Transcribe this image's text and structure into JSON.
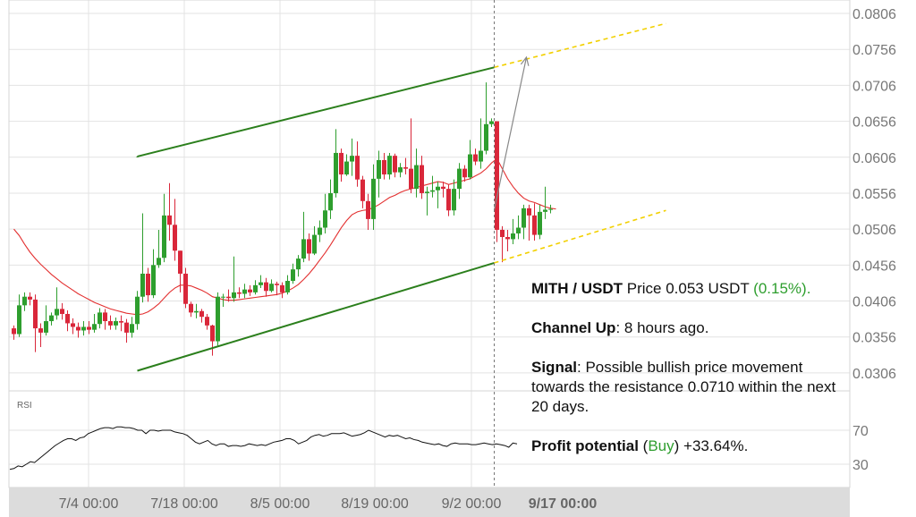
{
  "info": {
    "pair": "MITH / USDT",
    "price_label": "Price",
    "price": "0.053 USDT",
    "change": "(0.15%).",
    "pattern": "Channel Up",
    "pattern_time": ": 8 hours ago.",
    "signal_label": "Signal",
    "signal_text": ": Possible bullish price movement towards the resistance 0.0710 within the next 20 days.",
    "profit_label": "Profit potential",
    "profit_open": " (",
    "profit_action": "Buy",
    "profit_value": ") +33.64%."
  },
  "colors": {
    "up": "#2e9e2e",
    "down": "#d9273a",
    "channel": "#2b7f1c",
    "projection": "#f2d000",
    "ma": "#e33030",
    "rsi": "#111111"
  },
  "chart_data": [
    {
      "type": "candlestick",
      "title": "",
      "xlabel": "",
      "ylabel": "",
      "ylim": [
        0.0281,
        0.0806
      ],
      "y_ticks": [
        "0.0806",
        "0.0756",
        "0.0706",
        "0.0656",
        "0.0606",
        "0.0556",
        "0.0506",
        "0.0456",
        "0.0406",
        "0.0356",
        "0.0306"
      ],
      "x_ticks": [
        "7/4 00:00",
        "7/18 00:00",
        "8/5 00:00",
        "8/19 00:00",
        "9/2 00:00",
        "9/17 00:00"
      ],
      "grid": true,
      "candles": [
        {
          "o": 0.0368,
          "c": 0.036,
          "h": 0.0372,
          "l": 0.0352
        },
        {
          "o": 0.036,
          "c": 0.04,
          "h": 0.0415,
          "l": 0.0356
        },
        {
          "o": 0.04,
          "c": 0.0412,
          "h": 0.0418,
          "l": 0.0392
        },
        {
          "o": 0.0412,
          "c": 0.0408,
          "h": 0.0418,
          "l": 0.04
        },
        {
          "o": 0.0408,
          "c": 0.0368,
          "h": 0.0415,
          "l": 0.0335
        },
        {
          "o": 0.0368,
          "c": 0.0362,
          "h": 0.0375,
          "l": 0.0342
        },
        {
          "o": 0.0362,
          "c": 0.0378,
          "h": 0.04,
          "l": 0.0358
        },
        {
          "o": 0.0378,
          "c": 0.0386,
          "h": 0.039,
          "l": 0.0372
        },
        {
          "o": 0.0386,
          "c": 0.0395,
          "h": 0.0425,
          "l": 0.038
        },
        {
          "o": 0.0395,
          "c": 0.0388,
          "h": 0.0403,
          "l": 0.038
        },
        {
          "o": 0.0388,
          "c": 0.0375,
          "h": 0.0393,
          "l": 0.0364
        },
        {
          "o": 0.0375,
          "c": 0.037,
          "h": 0.0382,
          "l": 0.036
        },
        {
          "o": 0.037,
          "c": 0.0365,
          "h": 0.0376,
          "l": 0.0355
        },
        {
          "o": 0.0365,
          "c": 0.037,
          "h": 0.0378,
          "l": 0.0358
        },
        {
          "o": 0.037,
          "c": 0.0366,
          "h": 0.0378,
          "l": 0.036
        },
        {
          "o": 0.0366,
          "c": 0.0374,
          "h": 0.0388,
          "l": 0.0362
        },
        {
          "o": 0.0374,
          "c": 0.039,
          "h": 0.0396,
          "l": 0.0368
        },
        {
          "o": 0.039,
          "c": 0.0378,
          "h": 0.0395,
          "l": 0.0366
        },
        {
          "o": 0.0378,
          "c": 0.0372,
          "h": 0.0386,
          "l": 0.0366
        },
        {
          "o": 0.0372,
          "c": 0.0378,
          "h": 0.0383,
          "l": 0.0366
        },
        {
          "o": 0.0378,
          "c": 0.0376,
          "h": 0.0386,
          "l": 0.0364
        },
        {
          "o": 0.0376,
          "c": 0.0362,
          "h": 0.0381,
          "l": 0.0348
        },
        {
          "o": 0.0362,
          "c": 0.0374,
          "h": 0.0384,
          "l": 0.0355
        },
        {
          "o": 0.0374,
          "c": 0.0412,
          "h": 0.042,
          "l": 0.0366
        },
        {
          "o": 0.0412,
          "c": 0.0444,
          "h": 0.0528,
          "l": 0.0404
        },
        {
          "o": 0.0444,
          "c": 0.0414,
          "h": 0.0452,
          "l": 0.0405
        },
        {
          "o": 0.0414,
          "c": 0.0456,
          "h": 0.0478,
          "l": 0.041
        },
        {
          "o": 0.0456,
          "c": 0.0466,
          "h": 0.0505,
          "l": 0.0452
        },
        {
          "o": 0.0466,
          "c": 0.0525,
          "h": 0.0555,
          "l": 0.046
        },
        {
          "o": 0.0525,
          "c": 0.0512,
          "h": 0.057,
          "l": 0.049
        },
        {
          "o": 0.0512,
          "c": 0.0476,
          "h": 0.0548,
          "l": 0.0462
        },
        {
          "o": 0.0476,
          "c": 0.0444,
          "h": 0.0476,
          "l": 0.0418
        },
        {
          "o": 0.0444,
          "c": 0.0402,
          "h": 0.0452,
          "l": 0.0396
        },
        {
          "o": 0.0402,
          "c": 0.039,
          "h": 0.0405,
          "l": 0.0384
        },
        {
          "o": 0.039,
          "c": 0.0392,
          "h": 0.0402,
          "l": 0.0382
        },
        {
          "o": 0.0392,
          "c": 0.0384,
          "h": 0.0395,
          "l": 0.0376
        },
        {
          "o": 0.0384,
          "c": 0.0372,
          "h": 0.0388,
          "l": 0.0366
        },
        {
          "o": 0.0372,
          "c": 0.035,
          "h": 0.0373,
          "l": 0.033
        },
        {
          "o": 0.035,
          "c": 0.0412,
          "h": 0.0418,
          "l": 0.0344
        },
        {
          "o": 0.0412,
          "c": 0.0412,
          "h": 0.0416,
          "l": 0.0398
        },
        {
          "o": 0.0412,
          "c": 0.041,
          "h": 0.0422,
          "l": 0.0405
        },
        {
          "o": 0.041,
          "c": 0.0418,
          "h": 0.0468,
          "l": 0.0405
        },
        {
          "o": 0.0418,
          "c": 0.0416,
          "h": 0.0425,
          "l": 0.041
        },
        {
          "o": 0.0416,
          "c": 0.0422,
          "h": 0.043,
          "l": 0.041
        },
        {
          "o": 0.0422,
          "c": 0.0418,
          "h": 0.0428,
          "l": 0.0413
        },
        {
          "o": 0.0418,
          "c": 0.0428,
          "h": 0.0435,
          "l": 0.0415
        },
        {
          "o": 0.0428,
          "c": 0.0432,
          "h": 0.0442,
          "l": 0.0424
        },
        {
          "o": 0.0432,
          "c": 0.042,
          "h": 0.0438,
          "l": 0.0412
        },
        {
          "o": 0.042,
          "c": 0.043,
          "h": 0.0436,
          "l": 0.0418
        },
        {
          "o": 0.043,
          "c": 0.0428,
          "h": 0.0433,
          "l": 0.0414
        },
        {
          "o": 0.0428,
          "c": 0.0418,
          "h": 0.0432,
          "l": 0.041
        },
        {
          "o": 0.0418,
          "c": 0.0434,
          "h": 0.0442,
          "l": 0.0415
        },
        {
          "o": 0.0434,
          "c": 0.045,
          "h": 0.0458,
          "l": 0.043
        },
        {
          "o": 0.045,
          "c": 0.0465,
          "h": 0.047,
          "l": 0.044
        },
        {
          "o": 0.0465,
          "c": 0.0492,
          "h": 0.053,
          "l": 0.046
        },
        {
          "o": 0.0492,
          "c": 0.0472,
          "h": 0.05,
          "l": 0.0462
        },
        {
          "o": 0.0472,
          "c": 0.0498,
          "h": 0.051,
          "l": 0.047
        },
        {
          "o": 0.0498,
          "c": 0.0508,
          "h": 0.0518,
          "l": 0.0488
        },
        {
          "o": 0.0508,
          "c": 0.0532,
          "h": 0.0555,
          "l": 0.05
        },
        {
          "o": 0.0532,
          "c": 0.0556,
          "h": 0.0575,
          "l": 0.052
        },
        {
          "o": 0.0556,
          "c": 0.0612,
          "h": 0.0645,
          "l": 0.055
        },
        {
          "o": 0.0612,
          "c": 0.0582,
          "h": 0.0618,
          "l": 0.0572
        },
        {
          "o": 0.0582,
          "c": 0.06,
          "h": 0.061,
          "l": 0.058
        },
        {
          "o": 0.06,
          "c": 0.0608,
          "h": 0.0632,
          "l": 0.058
        },
        {
          "o": 0.0608,
          "c": 0.0575,
          "h": 0.0628,
          "l": 0.0565
        },
        {
          "o": 0.0575,
          "c": 0.0545,
          "h": 0.058,
          "l": 0.0535
        },
        {
          "o": 0.0545,
          "c": 0.052,
          "h": 0.0555,
          "l": 0.0505
        },
        {
          "o": 0.052,
          "c": 0.0576,
          "h": 0.0596,
          "l": 0.0505
        },
        {
          "o": 0.0576,
          "c": 0.0602,
          "h": 0.0615,
          "l": 0.055
        },
        {
          "o": 0.0602,
          "c": 0.0582,
          "h": 0.0612,
          "l": 0.0575
        },
        {
          "o": 0.0582,
          "c": 0.0608,
          "h": 0.0612,
          "l": 0.0575
        },
        {
          "o": 0.0608,
          "c": 0.0585,
          "h": 0.0611,
          "l": 0.0578
        },
        {
          "o": 0.0585,
          "c": 0.0592,
          "h": 0.0598,
          "l": 0.0578
        },
        {
          "o": 0.0592,
          "c": 0.059,
          "h": 0.0605,
          "l": 0.0582
        },
        {
          "o": 0.059,
          "c": 0.0562,
          "h": 0.066,
          "l": 0.0556
        },
        {
          "o": 0.0562,
          "c": 0.0595,
          "h": 0.0618,
          "l": 0.055
        },
        {
          "o": 0.0595,
          "c": 0.0556,
          "h": 0.0608,
          "l": 0.0548
        },
        {
          "o": 0.0556,
          "c": 0.0558,
          "h": 0.0565,
          "l": 0.0525
        },
        {
          "o": 0.0558,
          "c": 0.056,
          "h": 0.058,
          "l": 0.055
        },
        {
          "o": 0.056,
          "c": 0.0565,
          "h": 0.0572,
          "l": 0.0535
        },
        {
          "o": 0.0565,
          "c": 0.0562,
          "h": 0.0572,
          "l": 0.055
        },
        {
          "o": 0.0562,
          "c": 0.0532,
          "h": 0.0568,
          "l": 0.0524
        },
        {
          "o": 0.0532,
          "c": 0.0562,
          "h": 0.0575,
          "l": 0.0525
        },
        {
          "o": 0.0562,
          "c": 0.059,
          "h": 0.0598,
          "l": 0.0548
        },
        {
          "o": 0.059,
          "c": 0.0578,
          "h": 0.0595,
          "l": 0.0572
        },
        {
          "o": 0.0578,
          "c": 0.061,
          "h": 0.063,
          "l": 0.0575
        },
        {
          "o": 0.061,
          "c": 0.06,
          "h": 0.0618,
          "l": 0.0595
        },
        {
          "o": 0.06,
          "c": 0.0615,
          "h": 0.066,
          "l": 0.059
        },
        {
          "o": 0.0615,
          "c": 0.0652,
          "h": 0.071,
          "l": 0.061
        },
        {
          "o": 0.0652,
          "c": 0.0656,
          "h": 0.066,
          "l": 0.0648
        },
        {
          "o": 0.0656,
          "c": 0.0505,
          "h": 0.0656,
          "l": 0.0488
        },
        {
          "o": 0.0505,
          "c": 0.0495,
          "h": 0.051,
          "l": 0.046
        },
        {
          "o": 0.0495,
          "c": 0.0492,
          "h": 0.0505,
          "l": 0.0475
        },
        {
          "o": 0.0492,
          "c": 0.05,
          "h": 0.052,
          "l": 0.0485
        },
        {
          "o": 0.05,
          "c": 0.0508,
          "h": 0.0525,
          "l": 0.0492
        },
        {
          "o": 0.0508,
          "c": 0.0535,
          "h": 0.054,
          "l": 0.0492
        },
        {
          "o": 0.0535,
          "c": 0.0525,
          "h": 0.054,
          "l": 0.049
        },
        {
          "o": 0.0525,
          "c": 0.0498,
          "h": 0.0542,
          "l": 0.049
        },
        {
          "o": 0.0498,
          "c": 0.053,
          "h": 0.054,
          "l": 0.0492
        },
        {
          "o": 0.053,
          "c": 0.0533,
          "h": 0.0565,
          "l": 0.052
        },
        {
          "o": 0.0533,
          "c": 0.0534,
          "h": 0.054,
          "l": 0.0528
        }
      ],
      "ma": [
        0.0506,
        0.0497,
        0.0485,
        0.0474,
        0.0465,
        0.0457,
        0.045,
        0.0443,
        0.0437,
        0.0431,
        0.0426,
        0.0421,
        0.0416,
        0.0412,
        0.0408,
        0.0404,
        0.0401,
        0.0398,
        0.0395,
        0.0393,
        0.0391,
        0.0389,
        0.0388,
        0.0387,
        0.0388,
        0.0391,
        0.0396,
        0.0402,
        0.041,
        0.0418,
        0.0424,
        0.0428,
        0.0428,
        0.0427,
        0.0424,
        0.0421,
        0.0417,
        0.0412,
        0.041,
        0.0408,
        0.0407,
        0.0407,
        0.0408,
        0.0409,
        0.041,
        0.0411,
        0.0412,
        0.0413,
        0.0414,
        0.0415,
        0.0417,
        0.042,
        0.0424,
        0.0429,
        0.0436,
        0.0444,
        0.0453,
        0.0463,
        0.0473,
        0.0484,
        0.0496,
        0.0508,
        0.0518,
        0.0526,
        0.053,
        0.0532,
        0.0533,
        0.0536,
        0.054,
        0.0545,
        0.055,
        0.0553,
        0.0557,
        0.056,
        0.0562,
        0.0564,
        0.0566,
        0.0568,
        0.057,
        0.0572,
        0.0571,
        0.0568,
        0.057,
        0.0572,
        0.0574,
        0.0576,
        0.058,
        0.0584,
        0.059,
        0.0598,
        0.0604,
        0.059,
        0.0576,
        0.0565,
        0.0556,
        0.0549,
        0.0545,
        0.0543,
        0.054,
        0.0537,
        0.0535,
        0.0534
      ],
      "channel": {
        "upper": [
          {
            "i": 23,
            "v": 0.0607
          },
          {
            "i": 89.5,
            "v": 0.0731
          }
        ],
        "lower": [
          {
            "i": 23,
            "v": 0.0309
          },
          {
            "i": 89.5,
            "v": 0.0459
          }
        ]
      },
      "projection": {
        "upper": [
          {
            "i": 89.5,
            "v": 0.0731
          },
          {
            "i": 121.5,
            "v": 0.0792
          }
        ],
        "lower": [
          {
            "i": 89.5,
            "v": 0.0459
          },
          {
            "i": 121.5,
            "v": 0.0532
          }
        ]
      },
      "target_arrow": [
        {
          "i": 89.5,
          "v": 0.0533
        },
        {
          "i": 95.5,
          "v": 0.0745
        }
      ]
    },
    {
      "type": "line",
      "title": "RSI",
      "ylim": [
        20,
        86
      ],
      "y_ticks": [
        "70",
        "30"
      ],
      "values": [
        24,
        25,
        28,
        27,
        30,
        33,
        32,
        36,
        40,
        44,
        48,
        52,
        55,
        58,
        60,
        60,
        58,
        61,
        62,
        66,
        68,
        70,
        72,
        73,
        73,
        72,
        74,
        74,
        73,
        73,
        72,
        70,
        70,
        66,
        70,
        70,
        69,
        70,
        70,
        70,
        68,
        67,
        66,
        64,
        60,
        56,
        54,
        56,
        58,
        54,
        52,
        54,
        54,
        51,
        52,
        52,
        51,
        52,
        54,
        53,
        52,
        53,
        52,
        54,
        56,
        57,
        58,
        60,
        60,
        58,
        54,
        56,
        58,
        62,
        64,
        65,
        63,
        64,
        66,
        66,
        66,
        67,
        65,
        63,
        64,
        65,
        67,
        70,
        68,
        66,
        64,
        62,
        64,
        63,
        64,
        62,
        60,
        61,
        59,
        58,
        56,
        55,
        54,
        53,
        54,
        52,
        51,
        54,
        55,
        54,
        54,
        54,
        53,
        53,
        54,
        55,
        54,
        53,
        54,
        53,
        52,
        50,
        55,
        54
      ]
    }
  ]
}
